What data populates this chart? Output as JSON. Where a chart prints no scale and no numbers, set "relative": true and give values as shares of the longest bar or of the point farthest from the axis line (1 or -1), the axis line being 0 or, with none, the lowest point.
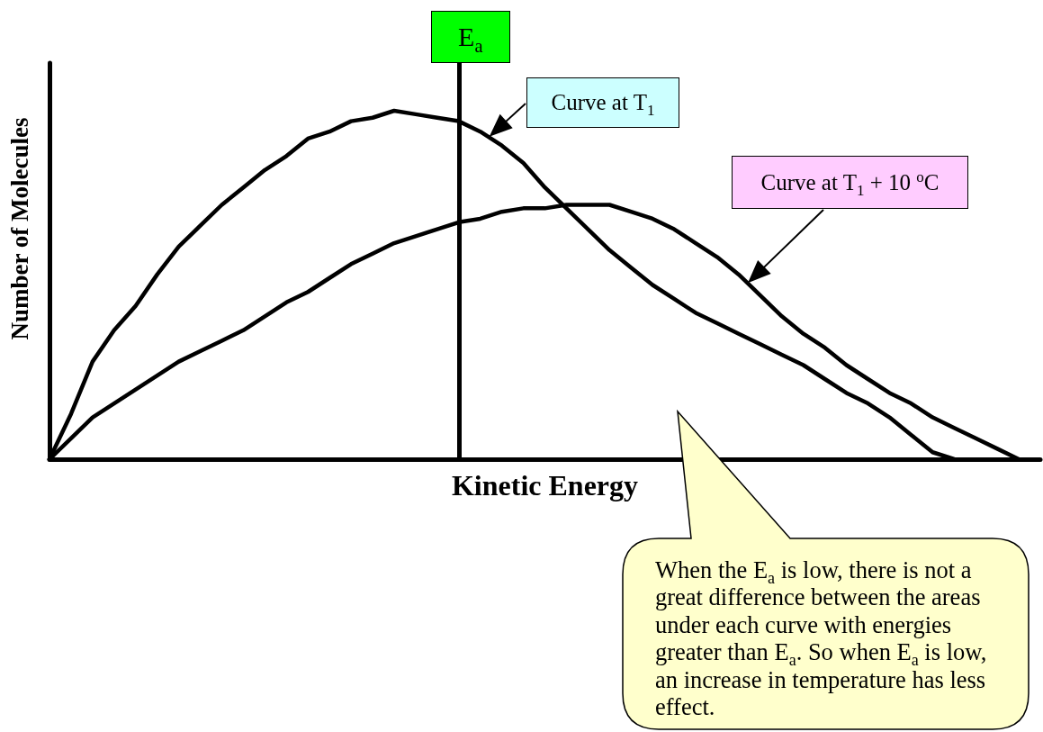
{
  "chart_data": {
    "type": "line",
    "xlabel": "Kinetic Energy",
    "ylabel": "Number of Molecules",
    "relative": true,
    "marker": "none",
    "line_style": "solid",
    "categories": [
      null,
      null,
      null,
      null,
      null,
      null,
      null,
      null,
      null,
      null,
      null,
      null,
      null,
      null,
      null,
      null,
      null,
      null,
      null,
      null,
      null,
      null,
      null,
      null,
      null,
      null,
      null,
      null,
      null,
      null,
      null,
      null,
      null,
      null,
      null,
      null,
      null,
      null,
      null,
      null,
      null,
      null,
      null,
      null,
      null,
      null,
      null
    ],
    "series": [
      {
        "name": "Curve at T$_{1}$",
        "color": "#000000",
        "values": [
          0,
          0.13,
          0.28,
          0.37,
          0.44,
          0.53,
          0.61,
          0.67,
          0.73,
          0.78,
          0.83,
          0.87,
          0.92,
          0.94,
          0.97,
          0.98,
          1,
          0.99,
          0.98,
          0.97,
          0.94,
          0.9,
          0.85,
          0.78,
          0.72,
          0.66,
          0.6,
          0.55,
          0.5,
          0.46,
          0.42,
          0.39,
          0.36,
          0.33,
          0.3,
          0.27,
          0.23,
          0.19,
          0.16,
          0.12,
          0.07,
          0.02,
          0,
          null,
          null,
          null,
          null
        ]
      },
      {
        "name": "Curve at T$_{1}$ + 10 $^{o}$C",
        "color": "#000000",
        "values": [
          0,
          0.06,
          0.12,
          0.16,
          0.2,
          0.24,
          0.28,
          0.31,
          0.34,
          0.37,
          0.41,
          0.45,
          0.48,
          0.52,
          0.56,
          0.59,
          0.62,
          0.64,
          0.66,
          0.68,
          0.69,
          0.71,
          0.72,
          0.72,
          0.73,
          0.73,
          0.73,
          0.71,
          0.69,
          0.66,
          0.62,
          0.58,
          0.53,
          0.47,
          0.41,
          0.36,
          0.32,
          0.27,
          0.23,
          0.19,
          0.16,
          0.12,
          0.09,
          0.06,
          0.03,
          0,
          null
        ]
      }
    ],
    "annotations": [
      "E$_{a}$",
      "When the E$_{a}$ is low, there is not a great difference between the areas under each curve with energies greater than E$_{a}$. So when E$_{a}$ is low, an increase in temperature has less effect."
    ]
  }
}
